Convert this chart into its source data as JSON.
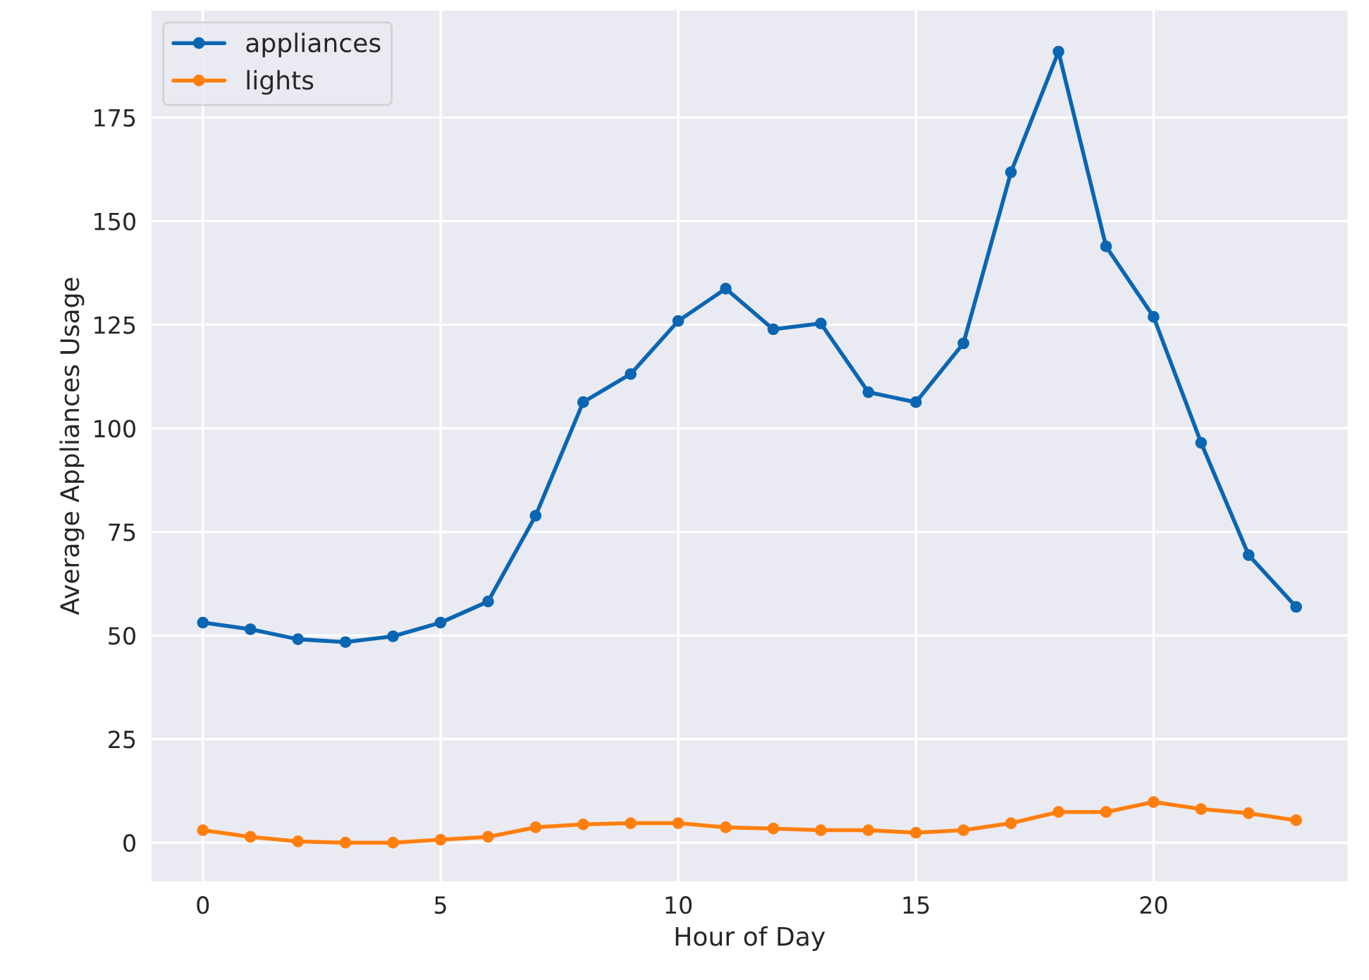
{
  "chart_data": {
    "type": "line",
    "xlabel": "Hour of Day",
    "ylabel": "Average Appliances Usage",
    "x": [
      0,
      1,
      2,
      3,
      4,
      5,
      6,
      7,
      8,
      9,
      10,
      11,
      12,
      13,
      14,
      15,
      16,
      17,
      18,
      19,
      20,
      21,
      22,
      23
    ],
    "series": [
      {
        "name": "appliances",
        "color": "#0a66b2",
        "values": [
          53.1,
          51.5,
          49.1,
          48.4,
          49.8,
          53.1,
          58.2,
          78.9,
          106.3,
          113.1,
          125.9,
          133.7,
          123.9,
          125.3,
          108.7,
          106.3,
          120.5,
          161.8,
          190.9,
          143.9,
          126.9,
          96.5,
          69.4,
          56.9
        ]
      },
      {
        "name": "lights",
        "color": "#ff7f0e",
        "values": [
          3.0,
          1.4,
          0.3,
          0.0,
          0.0,
          0.7,
          1.4,
          3.7,
          4.4,
          4.7,
          4.7,
          3.7,
          3.4,
          3.0,
          3.0,
          2.4,
          3.0,
          4.7,
          7.4,
          7.4,
          9.8,
          8.1,
          7.1,
          5.4
        ]
      }
    ],
    "xlim": [
      -1.1,
      24.1
    ],
    "xticks": [
      0,
      5,
      10,
      15,
      20
    ],
    "ylim": [
      -9.5,
      201
    ],
    "yticks": [
      0,
      25,
      50,
      75,
      100,
      125,
      150,
      175
    ],
    "grid": true,
    "legend": "top left",
    "marker": "circle",
    "line_style": "solid"
  }
}
